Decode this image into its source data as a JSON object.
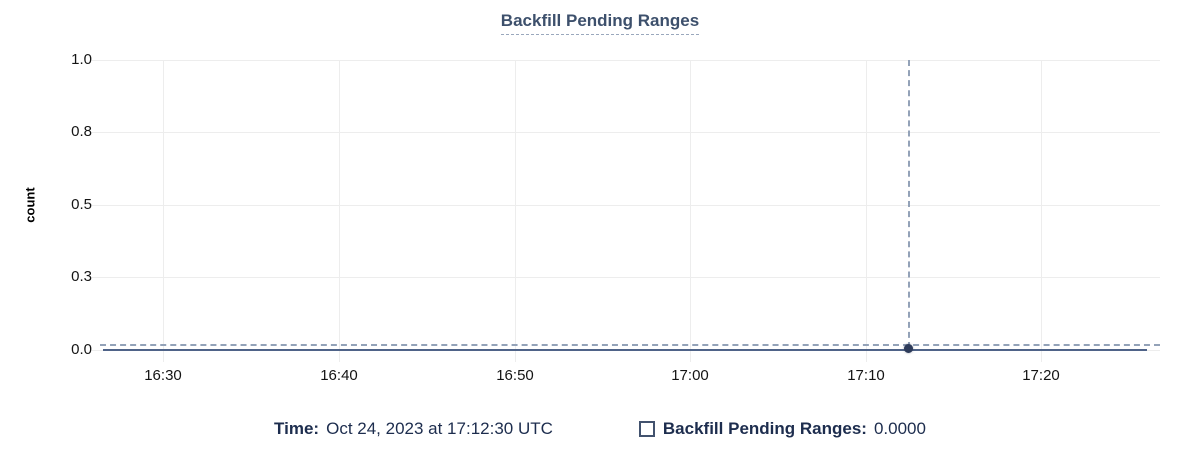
{
  "chart": {
    "title": "Backfill Pending Ranges",
    "y_axis": {
      "label": "count",
      "tick_labels": [
        "1.0",
        "0.8",
        "0.5",
        "0.3",
        "0.0"
      ]
    },
    "x_axis": {
      "tick_labels": [
        "16:30",
        "16:40",
        "16:50",
        "17:00",
        "17:10",
        "17:20"
      ]
    }
  },
  "tooltip": {
    "time_label": "Time:",
    "time_value": "Oct 24, 2023 at 17:12:30 UTC",
    "series_label": "Backfill Pending Ranges:",
    "series_value": "0.0000",
    "series_marker": "empty-square"
  },
  "colors": {
    "title": "#3d506c",
    "title-underline": "#9aa8bd",
    "tooltip-text": "#1d2d4e",
    "grid": "#ededed",
    "axis-text": "#141414",
    "series-line": "#4f6388",
    "crosshair": "#93a2b8",
    "marker-dot": "#2d3b5a",
    "checkbox-border": "#42526e"
  },
  "chart_data": {
    "type": "line",
    "title": "Backfill Pending Ranges",
    "xlabel": "Time",
    "ylabel": "count",
    "x": [
      "16:26",
      "16:30",
      "16:40",
      "16:50",
      "17:00",
      "17:10",
      "17:12:30",
      "17:20",
      "17:26"
    ],
    "series": [
      {
        "name": "Backfill Pending Ranges",
        "values": [
          0,
          0,
          0,
          0,
          0,
          0,
          0,
          0,
          0
        ]
      }
    ],
    "ylim": [
      0,
      1
    ],
    "y_ticks": [
      0,
      0.25,
      0.5,
      0.75,
      1.0
    ],
    "y_tick_labels": [
      "0.0",
      "0.3",
      "0.5",
      "0.8",
      "1.0"
    ],
    "x_tick_labels": [
      "16:30",
      "16:40",
      "16:50",
      "17:00",
      "17:10",
      "17:20"
    ],
    "grid": true,
    "legend": false,
    "hovered_point": {
      "x": "Oct 24, 2023 at 17:12:30 UTC",
      "y": 0.0,
      "display_value": "0.0000",
      "crosshair": true
    }
  }
}
